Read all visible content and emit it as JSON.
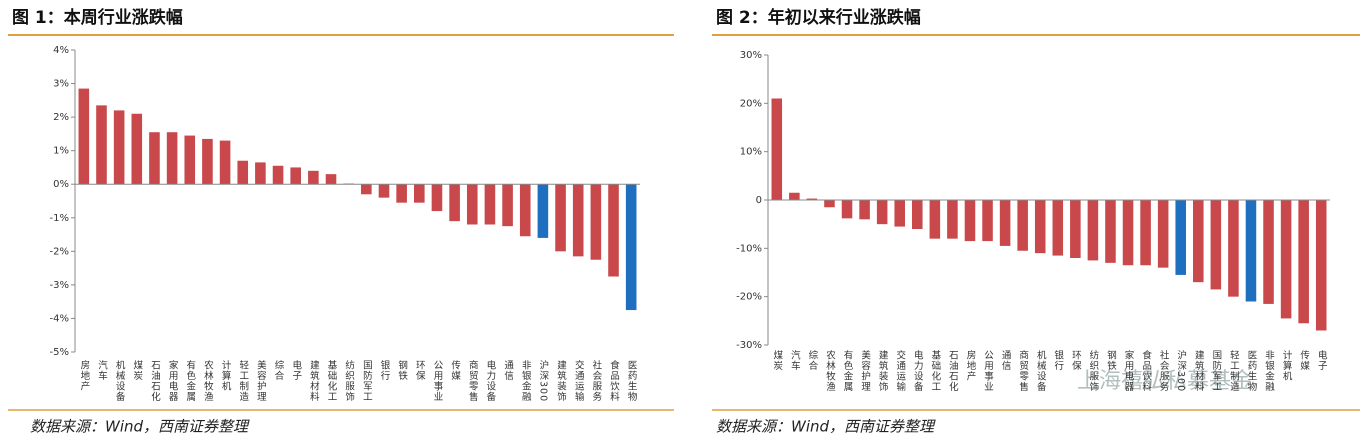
{
  "chart_data": [
    {
      "type": "bar",
      "title": "图 1：本周行业涨跌幅",
      "source": "数据来源：Wind，西南证券整理",
      "categories": [
        "房地产",
        "汽车",
        "机械设备",
        "煤炭",
        "石油石化",
        "家用电器",
        "有色金属",
        "农林牧渔",
        "计算机",
        "轻工制造",
        "美容护理",
        "综合",
        "电子",
        "建筑材料",
        "基础化工",
        "纺织服饰",
        "国防军工",
        "银行",
        "钢铁",
        "环保",
        "公用事业",
        "传媒",
        "商贸零售",
        "电力设备",
        "通信",
        "非银金融",
        "沪深300",
        "建筑装饰",
        "交通运输",
        "社会服务",
        "食品饮料",
        "医药生物"
      ],
      "values": [
        2.85,
        2.35,
        2.2,
        2.1,
        1.55,
        1.55,
        1.45,
        1.35,
        1.3,
        0.7,
        0.65,
        0.55,
        0.5,
        0.4,
        0.3,
        0.02,
        -0.3,
        -0.4,
        -0.55,
        -0.55,
        -0.8,
        -1.1,
        -1.2,
        -1.2,
        -1.25,
        -1.55,
        -1.6,
        -2.0,
        -2.15,
        -2.25,
        -2.75,
        -3.75
      ],
      "colors": [
        "#c9484b",
        "#c9484b",
        "#c9484b",
        "#c9484b",
        "#c9484b",
        "#c9484b",
        "#c9484b",
        "#c9484b",
        "#c9484b",
        "#c9484b",
        "#c9484b",
        "#c9484b",
        "#c9484b",
        "#c9484b",
        "#c9484b",
        "#c9484b",
        "#c9484b",
        "#c9484b",
        "#c9484b",
        "#c9484b",
        "#c9484b",
        "#c9484b",
        "#c9484b",
        "#c9484b",
        "#c9484b",
        "#c9484b",
        "#1f6fc0",
        "#c9484b",
        "#c9484b",
        "#c9484b",
        "#c9484b",
        "#1f6fc0"
      ],
      "ylim": [
        -5,
        4
      ],
      "yticks": [
        {
          "value": 4,
          "label": "4%"
        },
        {
          "value": 3,
          "label": "3%"
        },
        {
          "value": 2,
          "label": "2%"
        },
        {
          "value": 1,
          "label": "1%"
        },
        {
          "value": 0,
          "label": "0%"
        },
        {
          "value": -1,
          "label": "-1%"
        },
        {
          "value": -2,
          "label": "-2%"
        },
        {
          "value": -3,
          "label": "-3%"
        },
        {
          "value": -4,
          "label": "-4%"
        },
        {
          "value": -5,
          "label": "-5%"
        }
      ],
      "grid": false
    },
    {
      "type": "bar",
      "title": "图 2：年初以来行业涨跌幅",
      "source": "数据来源：Wind，西南证券整理",
      "categories": [
        "煤炭",
        "汽车",
        "综合",
        "农林牧渔",
        "有色金属",
        "美容护理",
        "建筑装饰",
        "交通运输",
        "电力设备",
        "基础化工",
        "石油石化",
        "房地产",
        "公用事业",
        "通信",
        "商贸零售",
        "机械设备",
        "银行",
        "环保",
        "纺织服饰",
        "钢铁",
        "家用电器",
        "食品饮料",
        "社会服务",
        "沪深300",
        "建筑材料",
        "国防军工",
        "轻工制造",
        "医药生物",
        "非银金融",
        "计算机",
        "传媒",
        "电子"
      ],
      "values": [
        21,
        1.5,
        0.3,
        -1.5,
        -3.8,
        -4,
        -5,
        -5.5,
        -6,
        -8,
        -8,
        -8.5,
        -8.5,
        -9.5,
        -10.5,
        -11,
        -11.5,
        -12,
        -12.5,
        -13,
        -13.5,
        -13.5,
        -14,
        -15.5,
        -17,
        -18.5,
        -20,
        -21,
        -21.5,
        -24.5,
        -25.5,
        -27
      ],
      "colors": [
        "#c9484b",
        "#c9484b",
        "#c9484b",
        "#c9484b",
        "#c9484b",
        "#c9484b",
        "#c9484b",
        "#c9484b",
        "#c9484b",
        "#c9484b",
        "#c9484b",
        "#c9484b",
        "#c9484b",
        "#c9484b",
        "#c9484b",
        "#c9484b",
        "#c9484b",
        "#c9484b",
        "#c9484b",
        "#c9484b",
        "#c9484b",
        "#c9484b",
        "#c9484b",
        "#1f6fc0",
        "#c9484b",
        "#c9484b",
        "#c9484b",
        "#1f6fc0",
        "#c9484b",
        "#c9484b",
        "#c9484b",
        "#c9484b"
      ],
      "ylim": [
        -30,
        30
      ],
      "yticks": [
        {
          "value": 30,
          "label": "30%"
        },
        {
          "value": 20,
          "label": "20%"
        },
        {
          "value": 10,
          "label": "10%"
        },
        {
          "value": 0,
          "label": "0"
        },
        {
          "value": -10,
          "label": "-10%"
        },
        {
          "value": -20,
          "label": "-20%"
        },
        {
          "value": -30,
          "label": "-30%"
        }
      ],
      "grid": false
    }
  ],
  "watermark": "上海禧弘私募基金"
}
